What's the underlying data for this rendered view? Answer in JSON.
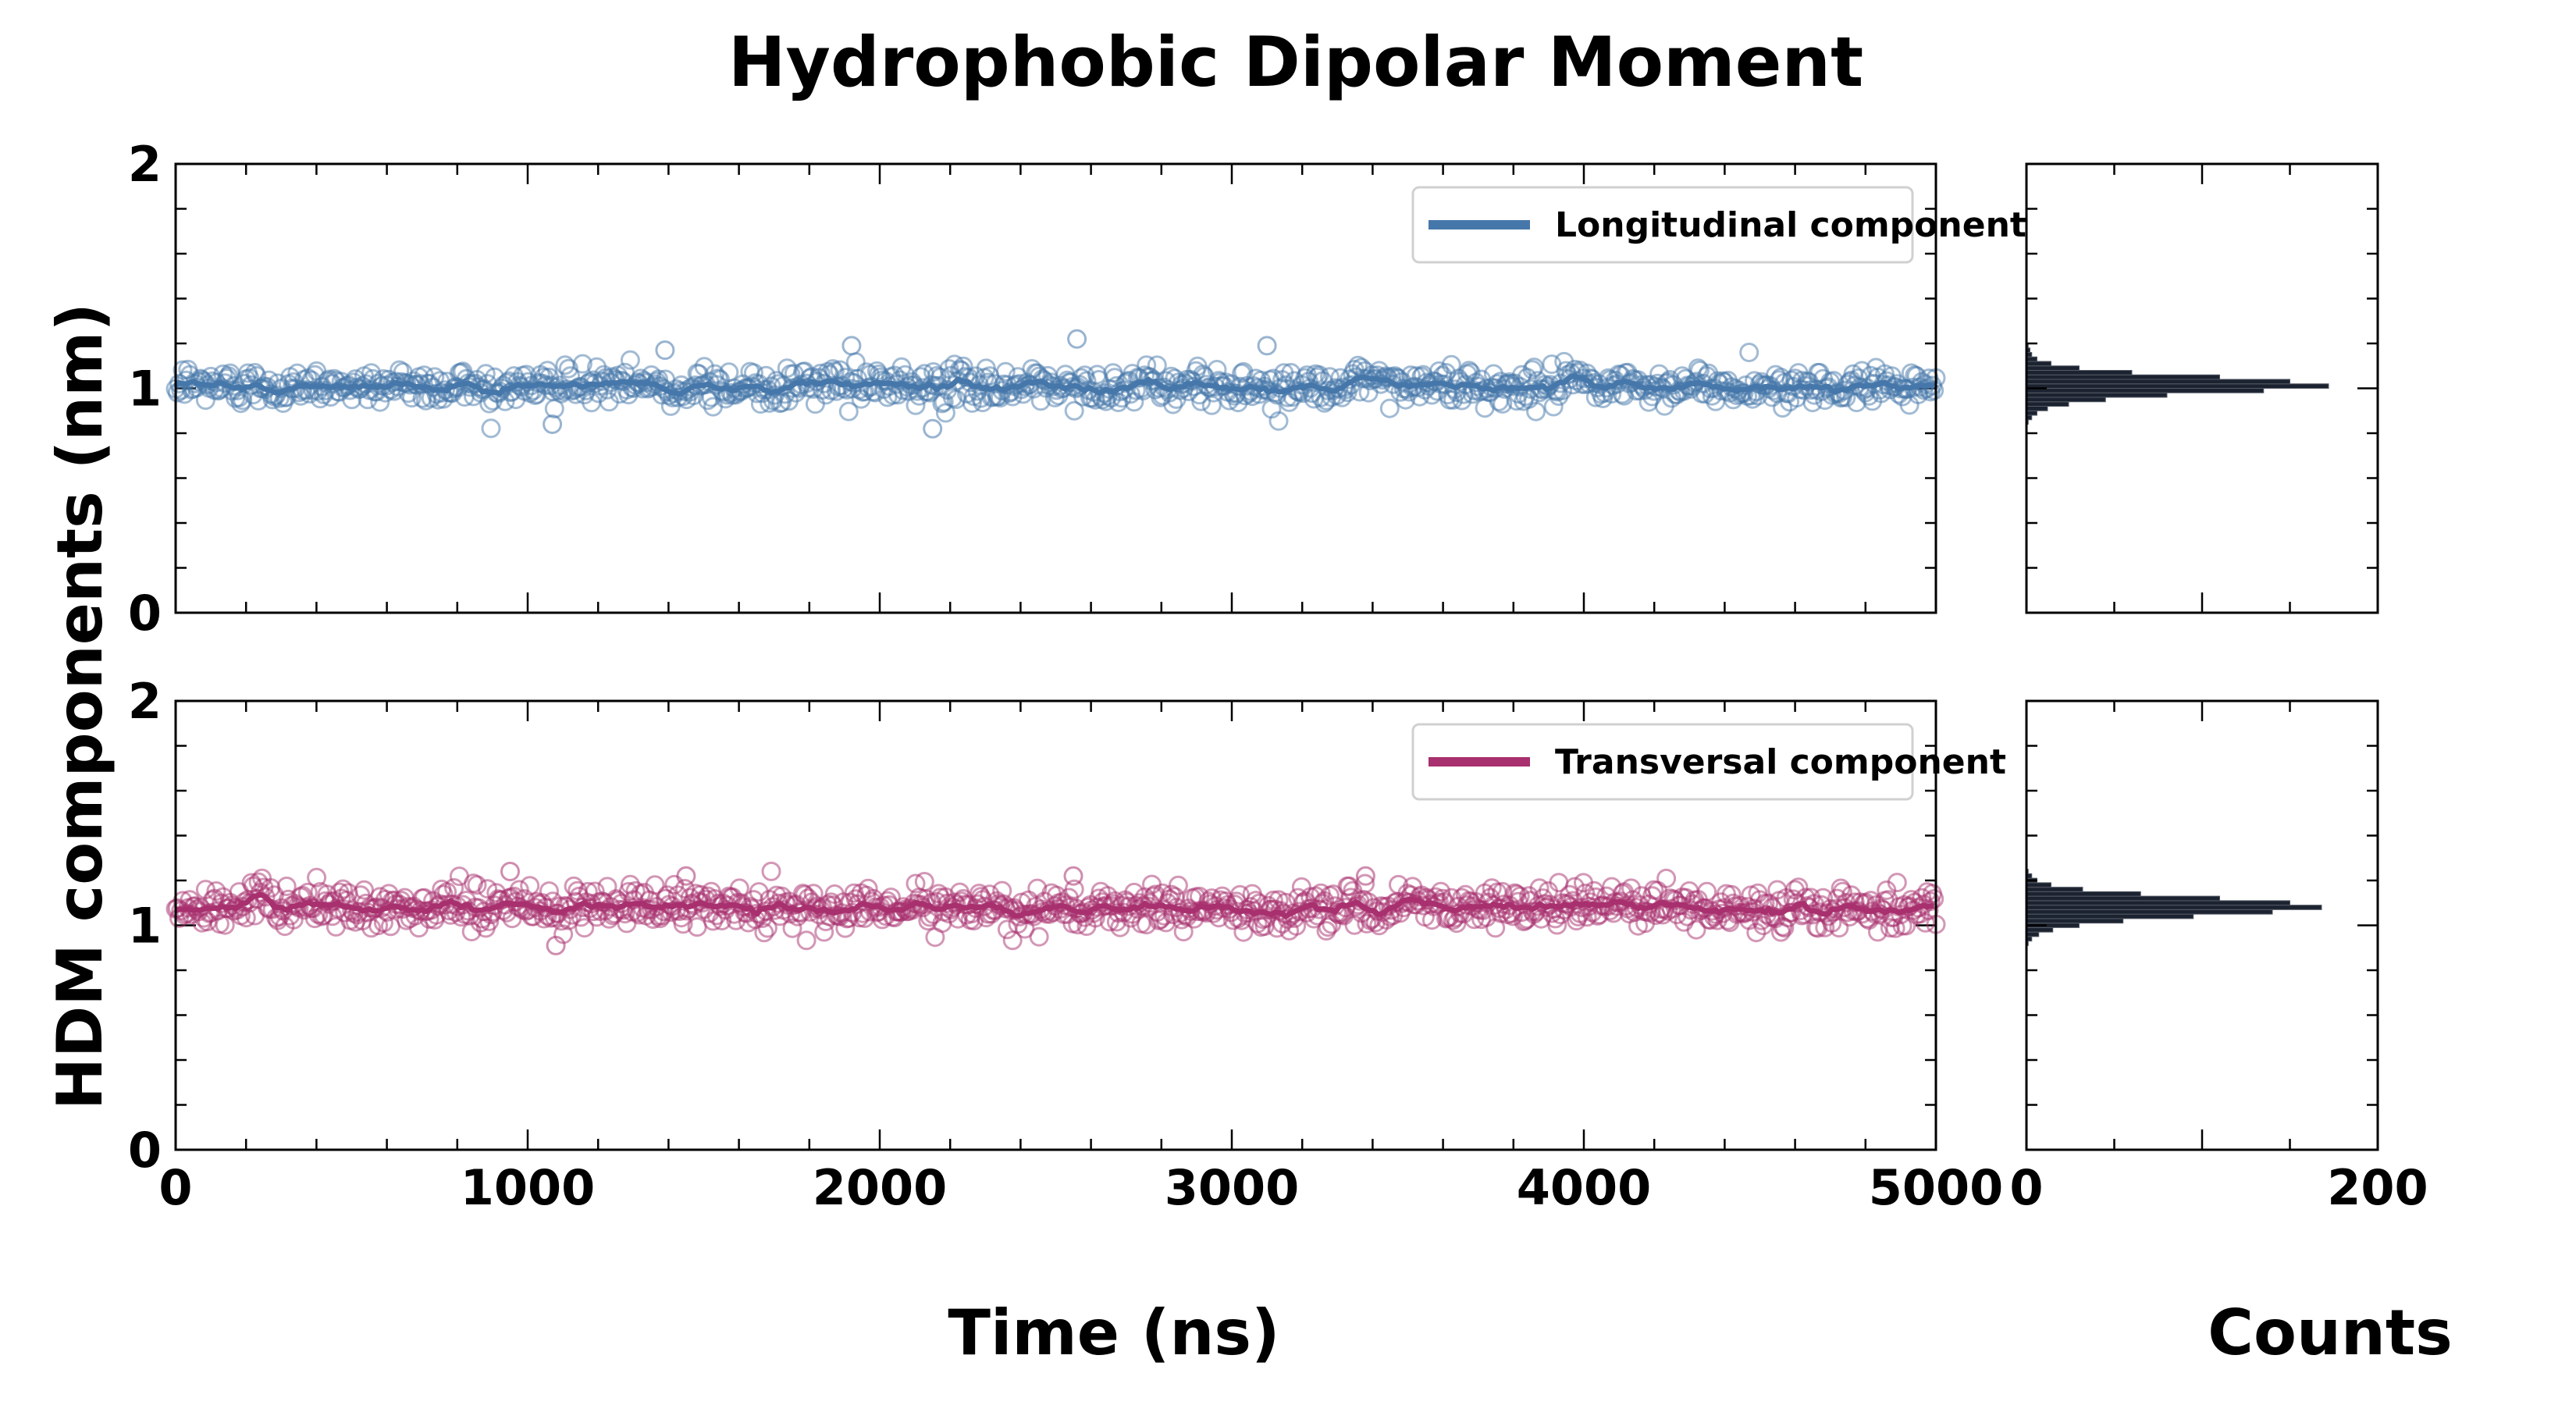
{
  "title": "Hydrophobic Dipolar Moment",
  "ylabel": "HDM components (nm)",
  "xlabel_time": "Time (ns)",
  "xlabel_counts": "Counts",
  "colors": {
    "longitudinal": "#4677aa",
    "transversal": "#a8306e",
    "histogram": "#1c2330"
  },
  "chart_data": [
    {
      "type": "scatter",
      "panel": "top-left",
      "xlabel": "",
      "ylabel": "",
      "xlim": [
        0,
        5000
      ],
      "ylim": [
        0,
        2
      ],
      "x_ticks": [
        "0",
        "1000",
        "2000",
        "3000",
        "4000",
        "5000"
      ],
      "y_ticks": [
        "0",
        "1",
        "2"
      ],
      "legend": "top-right",
      "series": [
        {
          "name": "Longitudinal component",
          "mean": 1.01,
          "spread": 0.04,
          "x_range": [
            0,
            5000
          ],
          "n_points": 1000,
          "notable_points": [
            [
              1390,
              1.17
            ],
            [
              1920,
              1.19
            ],
            [
              2150,
              0.82
            ],
            [
              2560,
              1.22
            ],
            [
              3100,
              1.19
            ],
            [
              1070,
              0.84
            ]
          ]
        }
      ]
    },
    {
      "type": "scatter",
      "panel": "bottom-left",
      "xlabel": "Time (ns)",
      "ylabel": "",
      "xlim": [
        0,
        5000
      ],
      "ylim": [
        0,
        2
      ],
      "x_ticks": [
        "0",
        "1000",
        "2000",
        "3000",
        "4000",
        "5000"
      ],
      "y_ticks": [
        "0",
        "1",
        "2"
      ],
      "legend": "top-right",
      "series": [
        {
          "name": "Transversal component",
          "mean": 1.08,
          "spread": 0.045,
          "x_range": [
            0,
            5000
          ],
          "n_points": 1000,
          "notable_points": [
            [
              950,
              1.24
            ],
            [
              1450,
              1.22
            ],
            [
              2550,
              1.22
            ],
            [
              3380,
              1.22
            ],
            [
              1080,
              0.91
            ]
          ]
        }
      ]
    },
    {
      "type": "bar",
      "panel": "top-right",
      "orientation": "horizontal",
      "xlabel": "",
      "xlim": [
        0,
        200
      ],
      "ylim": [
        0,
        2
      ],
      "x_ticks": [],
      "bin_centers": [
        0.85,
        0.87,
        0.89,
        0.91,
        0.93,
        0.95,
        0.97,
        0.99,
        1.01,
        1.03,
        1.05,
        1.07,
        1.09,
        1.11,
        1.13,
        1.15,
        1.17,
        1.19
      ],
      "counts": [
        1,
        3,
        6,
        12,
        24,
        45,
        80,
        135,
        172,
        150,
        110,
        60,
        30,
        14,
        6,
        3,
        2,
        1
      ]
    },
    {
      "type": "bar",
      "panel": "bottom-right",
      "orientation": "horizontal",
      "xlabel": "Counts",
      "xlim": [
        0,
        200
      ],
      "ylim": [
        0,
        2
      ],
      "x_ticks": [
        "0",
        "200"
      ],
      "bin_centers": [
        0.92,
        0.94,
        0.96,
        0.98,
        1.0,
        1.02,
        1.04,
        1.06,
        1.08,
        1.1,
        1.12,
        1.14,
        1.16,
        1.18,
        1.2,
        1.22,
        1.24
      ],
      "counts": [
        1,
        3,
        7,
        15,
        30,
        55,
        95,
        140,
        168,
        150,
        110,
        65,
        32,
        14,
        6,
        3,
        1
      ]
    }
  ]
}
